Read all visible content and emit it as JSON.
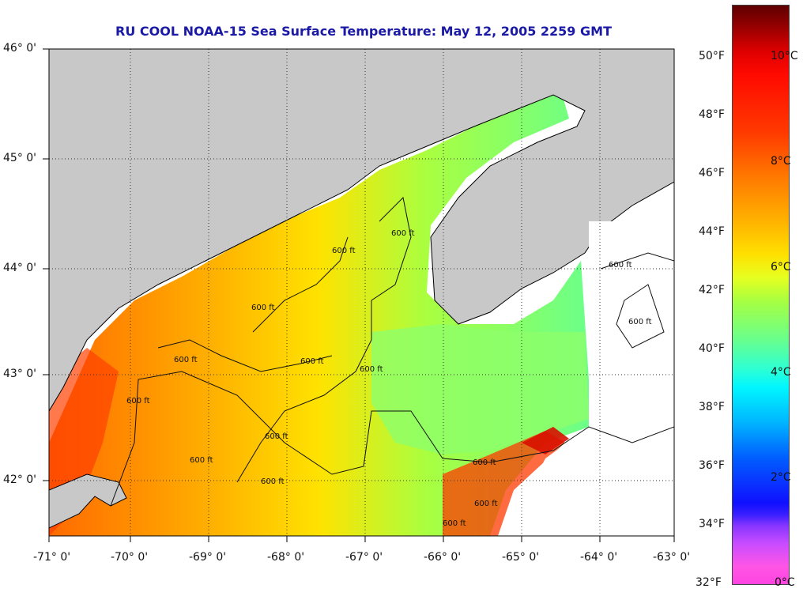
{
  "title": "RU COOL  NOAA-15  Sea Surface Temperature:  May 12, 2005 2259 GMT",
  "lat_labels": [
    "46° 0'",
    "45° 0'",
    "44° 0'",
    "43° 0'",
    "42° 0'"
  ],
  "lon_labels": [
    "-71° 0'",
    "-70° 0'",
    "-69° 0'",
    "-68° 0'",
    "-67° 0'",
    "-66° 0'",
    "-65° 0'",
    "-64° 0'",
    "-63° 0'"
  ],
  "contour_label": "600 ft",
  "fahrenheit_labels": [
    "50°F",
    "48°F",
    "46°F",
    "44°F",
    "42°F",
    "40°F",
    "38°F",
    "36°F",
    "34°F",
    "32°F"
  ],
  "celsius_labels": [
    "10°C",
    "8°C",
    "6°C",
    "4°C",
    "2°C",
    "0°C"
  ],
  "colors": {
    "title": "#1a1aa6",
    "land": "#c8c8c8",
    "no_data": "#ffffff"
  }
}
